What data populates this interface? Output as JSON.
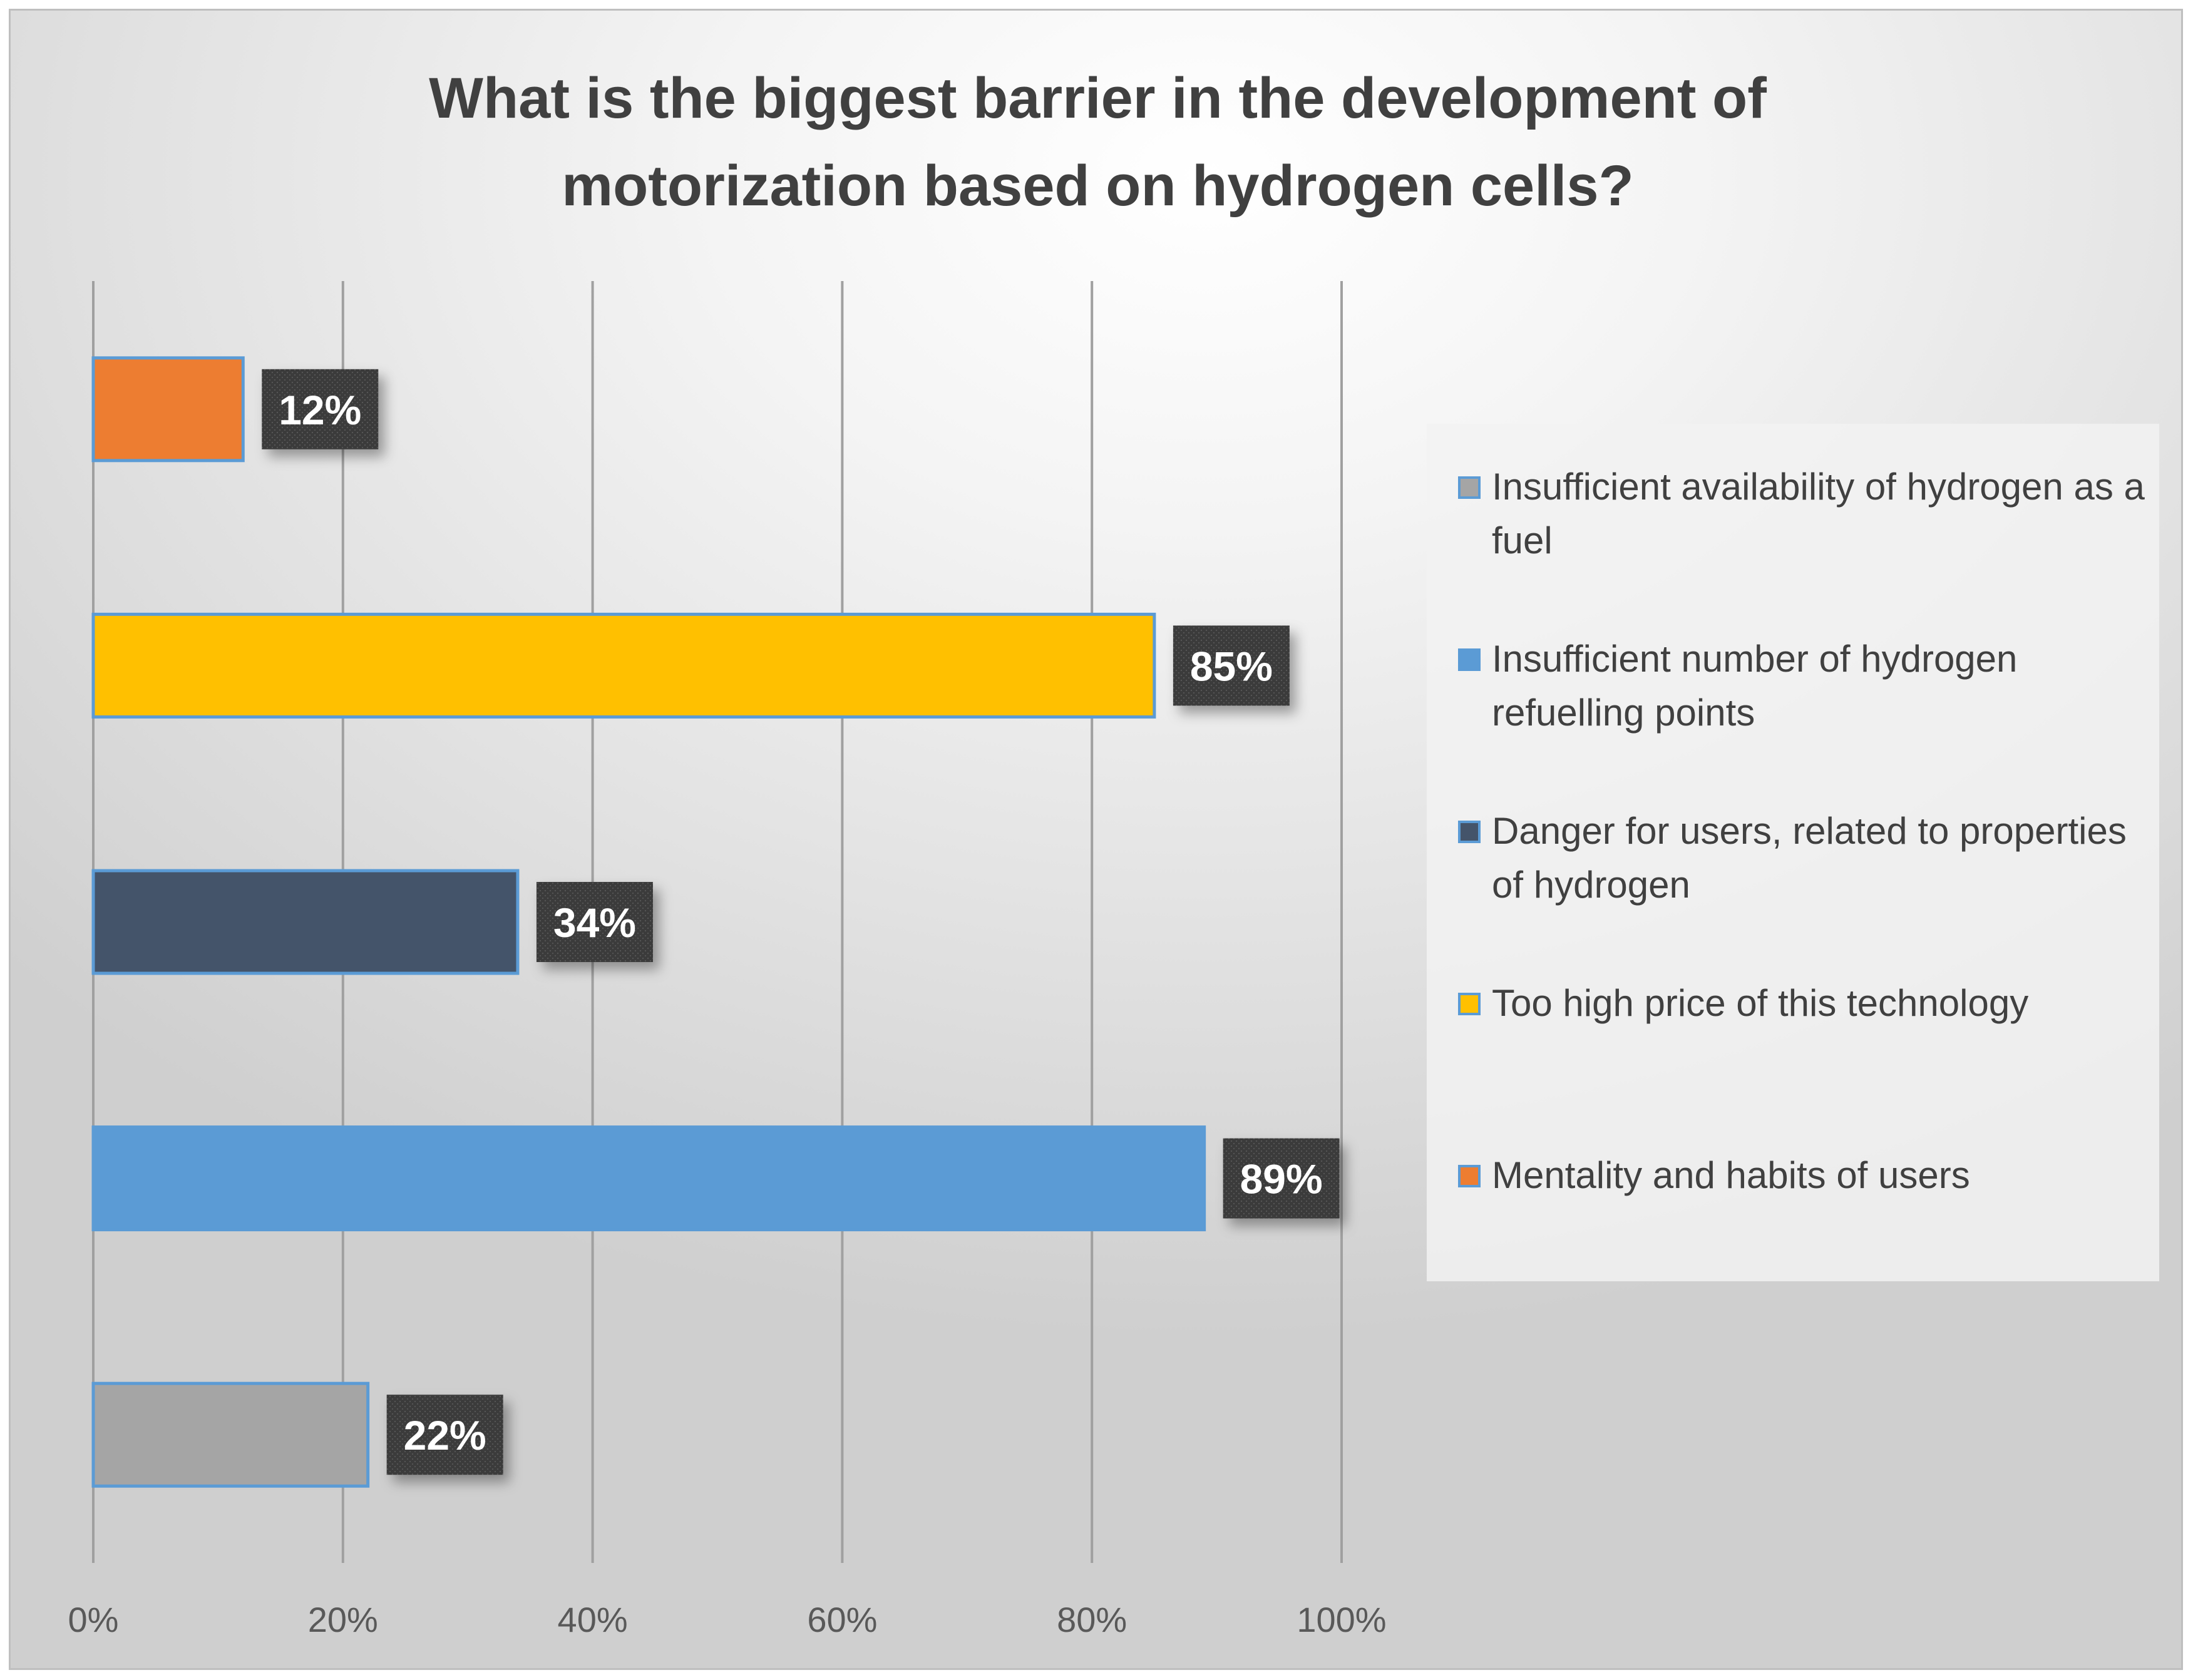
{
  "chart_data": {
    "type": "bar",
    "orientation": "horizontal",
    "title": "What is the biggest barrier in the development of\nmotorization based on hydrogen cells?",
    "xlabel": "",
    "ylabel": "",
    "xlim": [
      0,
      100
    ],
    "x_ticks": [
      "0%",
      "20%",
      "40%",
      "60%",
      "80%",
      "100%"
    ],
    "grid": "vertical",
    "legend_position": "right",
    "categories": [
      "Mentality and habits of users",
      "Too high price of this technology",
      "Danger for users, related to properties of hydrogen",
      "Insufficient number of hydrogen refuelling points",
      "Insufficient availability of hydrogen as a fuel"
    ],
    "values": [
      12,
      85,
      34,
      89,
      22
    ],
    "value_labels": [
      "12%",
      "85%",
      "34%",
      "89%",
      "22%"
    ],
    "colors": [
      "#ed7d31",
      "#ffc000",
      "#44546a",
      "#5b9bd5",
      "#a5a5a5"
    ],
    "border_color": "#5b9bd5"
  },
  "legend": {
    "items": [
      {
        "label": "Insufficient availability of hydrogen as a fuel",
        "color": "#a5a5a5"
      },
      {
        "label": "Insufficient number of hydrogen refuelling points",
        "color": "#5b9bd5"
      },
      {
        "label": "Danger for users, related to properties of hydrogen",
        "color": "#44546a"
      },
      {
        "label": "Too high price of this technology",
        "color": "#ffc000"
      },
      {
        "label": "Mentality and habits of users",
        "color": "#ed7d31"
      }
    ]
  }
}
